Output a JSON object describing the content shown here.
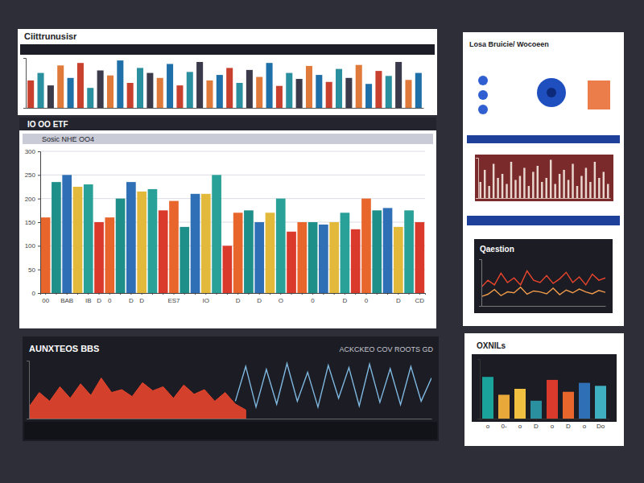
{
  "chart_data": [
    {
      "type": "bar",
      "title": "Ciittrunusisr",
      "categories": [
        null,
        null,
        null,
        null,
        null,
        null,
        null,
        null,
        null,
        null,
        null,
        null,
        null,
        null,
        null,
        null,
        null,
        null,
        null,
        null,
        null,
        null,
        null,
        null,
        null,
        null,
        null,
        null,
        null,
        null,
        null,
        null,
        null,
        null,
        null,
        null,
        null,
        null,
        null,
        null
      ],
      "values": [
        55,
        70,
        45,
        85,
        60,
        90,
        40,
        75,
        65,
        95,
        50,
        80,
        70,
        60,
        88,
        45,
        72,
        92,
        55,
        66,
        80,
        50,
        76,
        62,
        90,
        44,
        70,
        58,
        84,
        66,
        52,
        78,
        60,
        86,
        48,
        74,
        64,
        92,
        56,
        70
      ],
      "colors": [
        "#c8412e",
        "#2a8f9e",
        "#3a3a4a",
        "#e07a3a",
        "#1f6fa8",
        "#c8412e",
        "#2a8f9e",
        "#3a3a4a",
        "#e07a3a",
        "#1f6fa8",
        "#c8412e",
        "#2a8f9e",
        "#3a3a4a",
        "#e07a3a",
        "#1f6fa8",
        "#c8412e",
        "#2a8f9e",
        "#3a3a4a",
        "#e07a3a",
        "#1f6fa8",
        "#c8412e",
        "#2a8f9e",
        "#3a3a4a",
        "#e07a3a",
        "#1f6fa8",
        "#c8412e",
        "#2a8f9e",
        "#3a3a4a",
        "#e07a3a",
        "#1f6fa8",
        "#c8412e",
        "#2a8f9e",
        "#3a3a4a",
        "#e07a3a",
        "#1f6fa8",
        "#c8412e",
        "#2a8f9e",
        "#3a3a4a",
        "#e07a3a",
        "#1f6fa8"
      ],
      "ylim": [
        0,
        100
      ],
      "tick_labels": false
    },
    {
      "type": "bar",
      "title": "IO OO ETF",
      "subtitle": "Sosic NHE OO4",
      "categories": [
        "00",
        null,
        "BAB",
        null,
        "IB",
        "D",
        "0",
        null,
        "D",
        "D",
        null,
        null,
        "ES7",
        null,
        null,
        "IO",
        null,
        null,
        "D",
        null,
        "D",
        null,
        "O",
        null,
        null,
        "0",
        null,
        null,
        "D",
        null,
        "0",
        null,
        null,
        "D",
        null,
        "CD"
      ],
      "values": [
        160,
        235,
        250,
        225,
        230,
        150,
        160,
        200,
        235,
        215,
        220,
        175,
        195,
        140,
        210,
        210,
        250,
        100,
        170,
        175,
        150,
        170,
        200,
        130,
        150,
        150,
        145,
        150,
        170,
        135,
        200,
        175,
        180,
        140,
        175,
        150
      ],
      "colors": [
        "#e8662c",
        "#1f8f8a",
        "#2f6fb5",
        "#e2b93b",
        "#2aa198",
        "#d93a2b",
        "#e8662c",
        "#1f8f8a",
        "#2f6fb5",
        "#e2b93b",
        "#2aa198",
        "#d93a2b",
        "#e8662c",
        "#1f8f8a",
        "#2f6fb5",
        "#e2b93b",
        "#2aa198",
        "#d93a2b",
        "#e8662c",
        "#1f8f8a",
        "#2f6fb5",
        "#e2b93b",
        "#2aa198",
        "#d93a2b",
        "#e8662c",
        "#1f8f8a",
        "#2f6fb5",
        "#e2b93b",
        "#2aa198",
        "#d93a2b",
        "#e8662c",
        "#1f8f8a",
        "#2f6fb5",
        "#e2b93b",
        "#2aa198",
        "#d93a2b"
      ],
      "ylim": [
        0,
        300
      ],
      "yticks": [
        0,
        50,
        100,
        150,
        200,
        250,
        300
      ],
      "grid": true
    },
    {
      "type": "line",
      "title": "AUNXTEOS BBS",
      "subtitle": "ACKCKEO COV ROOTS GD",
      "x": [
        1,
        2,
        3,
        4,
        5,
        6,
        7,
        8,
        9,
        10,
        11,
        12,
        13,
        14,
        15,
        16,
        17,
        18,
        19,
        20,
        21,
        22,
        23,
        24,
        25,
        26,
        27,
        28,
        29,
        30,
        31,
        32,
        33,
        34,
        35,
        36,
        37,
        38,
        39,
        40
      ],
      "xlim": [
        1,
        40
      ],
      "ylim": [
        0,
        100
      ],
      "tick_labels": false,
      "series": [
        {
          "type": "area",
          "color": "#e8452c",
          "values": [
            20,
            45,
            30,
            55,
            35,
            60,
            40,
            70,
            45,
            50,
            38,
            62,
            48,
            55,
            35,
            58,
            42,
            50,
            30,
            45,
            25,
            15,
            null,
            null,
            null,
            null,
            null,
            null,
            null,
            null,
            null,
            null,
            null,
            null,
            null,
            null,
            null,
            null,
            null,
            null
          ]
        },
        {
          "type": "line",
          "color": "#7fb8e0",
          "values": [
            null,
            null,
            null,
            null,
            null,
            null,
            null,
            null,
            null,
            null,
            null,
            null,
            null,
            null,
            null,
            null,
            null,
            null,
            null,
            null,
            30,
            90,
            20,
            85,
            25,
            95,
            30,
            80,
            20,
            92,
            35,
            88,
            22,
            94,
            28,
            86,
            24,
            90,
            30,
            70
          ]
        }
      ]
    },
    {
      "type": "bar",
      "title": "Losa Bruicie/ Wocoeen",
      "categories": [
        null,
        null,
        null,
        null,
        null,
        null,
        null,
        null,
        null,
        null,
        null,
        null,
        null,
        null,
        null,
        null,
        null,
        null,
        null,
        null,
        null,
        null,
        null,
        null,
        null,
        null,
        null,
        null,
        null,
        null
      ],
      "values": [
        40,
        70,
        30,
        85,
        50,
        60,
        35,
        90,
        45,
        55,
        75,
        30,
        65,
        80,
        40,
        50,
        95,
        35,
        60,
        70,
        45,
        85,
        30,
        55,
        75,
        40,
        90,
        50,
        65,
        35
      ],
      "color": "#e9d6cf",
      "ylim": [
        0,
        100
      ],
      "tick_labels": false
    },
    {
      "type": "line",
      "title": "Qaestion",
      "x": [
        1,
        2,
        3,
        4,
        5,
        6,
        7,
        8,
        9,
        10,
        11,
        12,
        13,
        14,
        15,
        16,
        17,
        18,
        19,
        20
      ],
      "xlim": [
        1,
        20
      ],
      "ylim": [
        0,
        100
      ],
      "tick_labels": false,
      "series": [
        {
          "color": "#e8452c",
          "values": [
            40,
            55,
            45,
            70,
            50,
            60,
            45,
            75,
            55,
            50,
            65,
            48,
            58,
            72,
            50,
            62,
            45,
            68,
            55,
            60
          ]
        },
        {
          "color": "#f09a4a",
          "values": [
            20,
            25,
            35,
            22,
            30,
            28,
            40,
            25,
            32,
            30,
            26,
            38,
            24,
            34,
            28,
            36,
            30,
            26,
            33,
            29
          ]
        }
      ]
    },
    {
      "type": "bar",
      "title": "OXNILs",
      "categories": [
        "o",
        "0-",
        "o",
        "D",
        "o",
        "D",
        "o",
        "Do"
      ],
      "values": [
        70,
        40,
        50,
        30,
        65,
        45,
        60,
        55
      ],
      "colors": [
        "#1aa39a",
        "#e8a93a",
        "#f0c040",
        "#2a8f9e",
        "#d93a2b",
        "#e8662c",
        "#2f6fb5",
        "#3fb0c0"
      ],
      "ylim": [
        0,
        100
      ],
      "tick_labels": "x"
    }
  ]
}
